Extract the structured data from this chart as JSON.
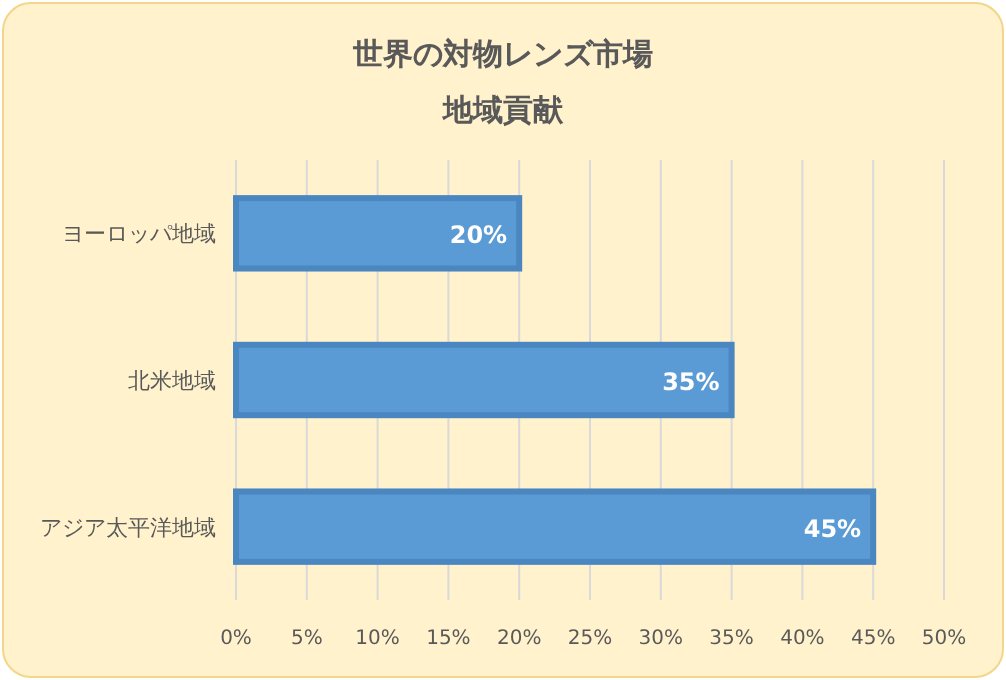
{
  "chart_data": {
    "type": "bar",
    "orientation": "horizontal",
    "title": "世界の対物レンズ市場",
    "subtitle": "地域貢献",
    "categories": [
      "ヨーロッパ地域",
      "北米地域",
      "アジア太平洋地域"
    ],
    "values": [
      20,
      35,
      45
    ],
    "value_labels": [
      "20%",
      "35%",
      "45%"
    ],
    "color": "#5b9bd5",
    "xlim": [
      0,
      50
    ],
    "xticks": [
      {
        "value": 0,
        "label": "0%"
      },
      {
        "value": 5,
        "label": "5%"
      },
      {
        "value": 10,
        "label": "10%"
      },
      {
        "value": 15,
        "label": "15%"
      },
      {
        "value": 20,
        "label": "20%"
      },
      {
        "value": 25,
        "label": "25%"
      },
      {
        "value": 30,
        "label": "30%"
      },
      {
        "value": 35,
        "label": "35%"
      },
      {
        "value": 40,
        "label": "40%"
      },
      {
        "value": 45,
        "label": "45%"
      },
      {
        "value": 50,
        "label": "50%"
      }
    ],
    "grid": "x"
  }
}
